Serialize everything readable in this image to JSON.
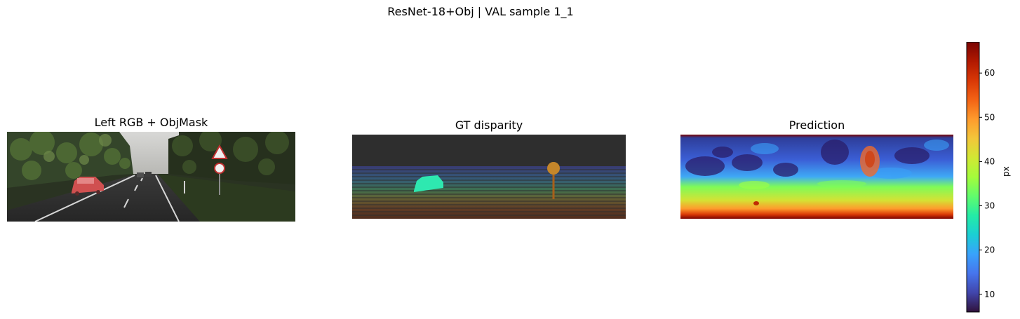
{
  "suptitle": "ResNet-18+Obj | VAL sample 1_1",
  "chart_data": [
    {
      "type": "image",
      "title": "Left RGB  +  ObjMask",
      "content": "road scene photo with a car highlighted by a red object mask"
    },
    {
      "type": "heatmap",
      "title": "GT disparity",
      "content": "sparse LiDAR ground-truth disparity with a dense object mask"
    },
    {
      "type": "heatmap",
      "title": "Prediction",
      "content": "dense predicted disparity map"
    }
  ],
  "colorbar": {
    "label": "px",
    "range": [
      6,
      67
    ],
    "ticks": [
      "10",
      "20",
      "30",
      "40",
      "50",
      "60"
    ],
    "tick_values": [
      10,
      20,
      30,
      40,
      50,
      60
    ],
    "colormap": "turbo"
  },
  "colors": {
    "turbo": [
      "#30123b",
      "#4145ab",
      "#4675ed",
      "#39a2fc",
      "#1bcfd4",
      "#24eca6",
      "#61fc6c",
      "#a4fc3b",
      "#d1e834",
      "#f3c63a",
      "#fe9b2d",
      "#f36315",
      "#d93806",
      "#b11901",
      "#7a0402"
    ]
  }
}
